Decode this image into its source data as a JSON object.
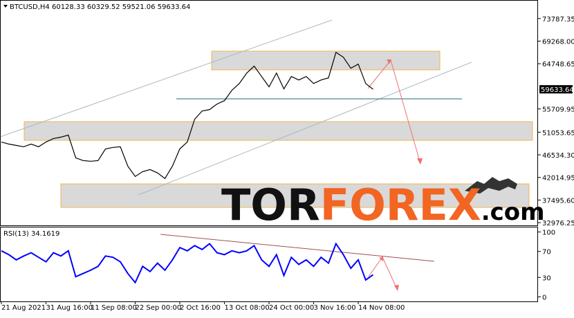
{
  "chart_data": [
    {
      "type": "line",
      "title": "BTCUSD,H4  60128.33 60329.52 59521.06 59633.64",
      "last_price": 59633.64,
      "watermark": [
        "TOR",
        "FOREX",
        ".com"
      ],
      "categories": [
        "21 Aug 2021",
        null,
        null,
        null,
        null,
        null,
        "31 Aug 16:00",
        null,
        null,
        null,
        null,
        null,
        "11 Sep 08:00",
        null,
        null,
        null,
        null,
        null,
        "22 Sep 00:00",
        null,
        null,
        null,
        null,
        null,
        "2 Oct 16:00",
        null,
        null,
        null,
        null,
        null,
        "13 Oct 08:00",
        null,
        null,
        null,
        null,
        null,
        "24 Oct 00:00",
        null,
        null,
        null,
        null,
        null,
        "3 Nov 16:00",
        null,
        null,
        null,
        null,
        null,
        "14 Nov 08:00",
        null,
        null
      ],
      "series": [
        {
          "name": "BTCUSD",
          "color": "#000000",
          "values": [
            49100,
            48690,
            48410,
            48140,
            48690,
            48140,
            49100,
            49790,
            50060,
            50480,
            45930,
            45380,
            45240,
            45380,
            47720,
            48000,
            48140,
            44280,
            42210,
            43170,
            43590,
            42900,
            41800,
            44280,
            47720,
            49100,
            53650,
            55300,
            55580,
            56680,
            57370,
            59440,
            60790,
            62880,
            64260,
            62190,
            60130,
            62880,
            59710,
            62190,
            61500,
            62190,
            60790,
            61500,
            61920,
            67020,
            66050,
            63840,
            64670,
            60790,
            59630
          ]
        }
      ],
      "ylim": [
        32430,
        77350
      ],
      "yticks": [
        73787.35,
        {
          "value": 69268,
          "label": "69268.00"
        },
        64748.65,
        55709.95,
        51053.65,
        {
          "value": 46534.3,
          "label": "46534.30"
        },
        42014.95,
        {
          "value": 37495.6,
          "label": "37495.60"
        },
        32976.25
      ]
    },
    {
      "type": "line",
      "title": "RSI(13) 34.1619",
      "series": [
        {
          "name": "RSI(13)",
          "color": "#0000ff",
          "values": [
            71,
            65,
            57,
            63,
            68,
            61,
            54,
            68,
            63,
            71,
            31,
            36,
            41,
            47,
            63,
            61,
            54,
            36,
            22,
            47,
            39,
            52,
            41,
            57,
            76,
            71,
            79,
            73,
            82,
            68,
            65,
            71,
            68,
            71,
            79,
            57,
            47,
            65,
            33,
            61,
            50,
            57,
            47,
            61,
            52,
            82,
            65,
            44,
            57,
            26,
            34.16
          ]
        }
      ],
      "ylim": [
        -7,
        107
      ],
      "yticks": [
        100,
        70,
        30,
        0
      ]
    }
  ]
}
